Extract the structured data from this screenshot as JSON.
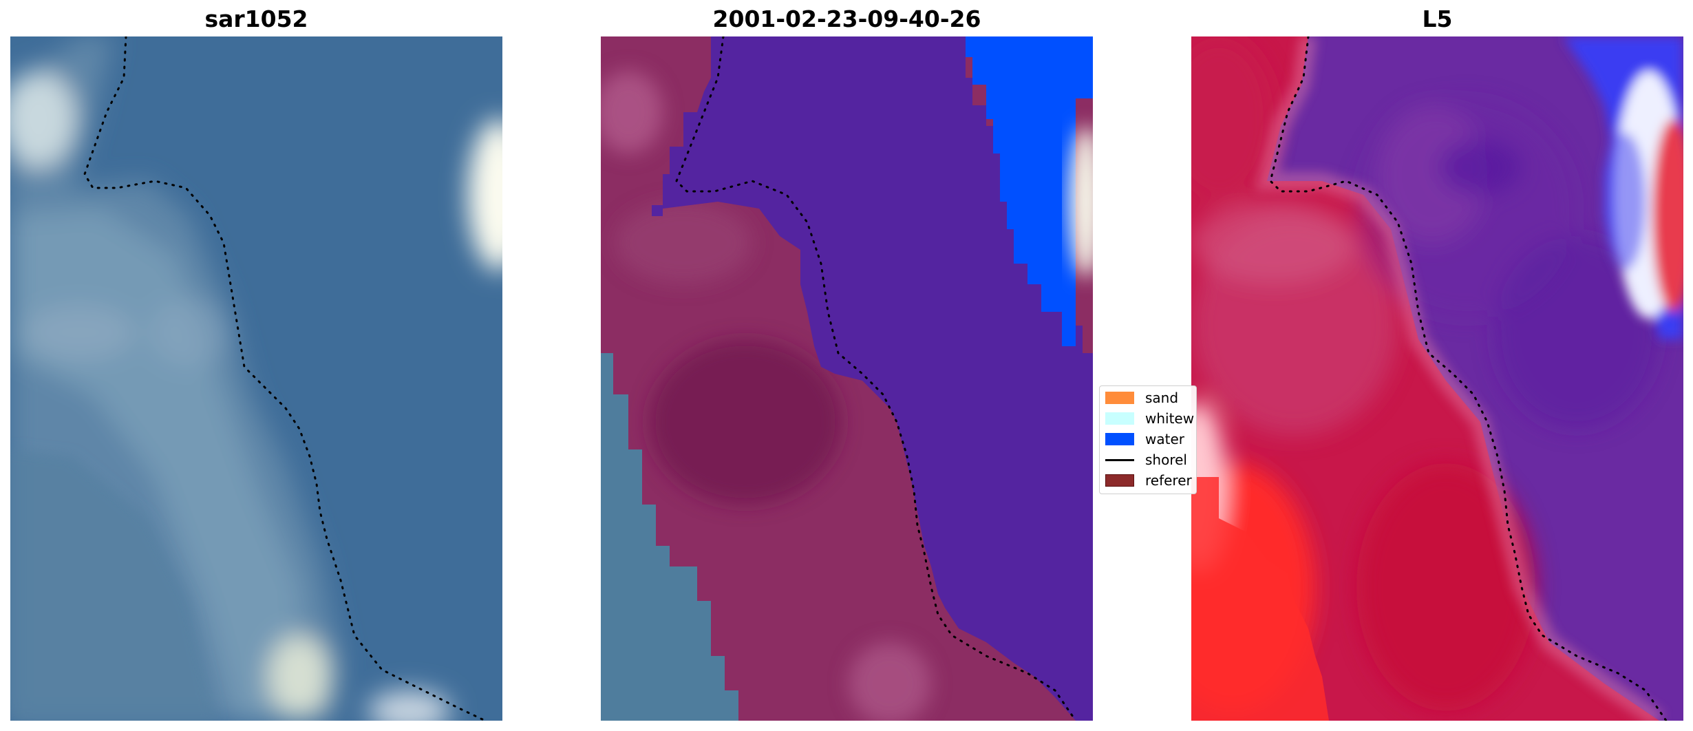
{
  "panels": [
    {
      "title": "sar1052",
      "icon": "satellite-rgb-image"
    },
    {
      "title": "2001-02-23-09-40-26",
      "icon": "classified-overlay-image"
    },
    {
      "title": "L5",
      "icon": "index-heatmap-image"
    }
  ],
  "legend": {
    "items": [
      {
        "label": "sand",
        "color": "#ff8c3a"
      },
      {
        "label": "whitew",
        "color": "#c8ffff"
      },
      {
        "label": "water",
        "color": "#0050ff"
      },
      {
        "label": "shorel",
        "color": "#000000"
      },
      {
        "label": "referer",
        "color": "#8c2a2a"
      }
    ]
  },
  "colors": {
    "ocean": "#3e6c98",
    "water_class": "#5525a0",
    "land_class": "#8c2d63",
    "land_class_dark": "#7a1f56",
    "whitewater": "#0050ff",
    "heat_red": "#d4163f",
    "heat_purple": "#6a2aa2",
    "shoreline": "#000000"
  }
}
